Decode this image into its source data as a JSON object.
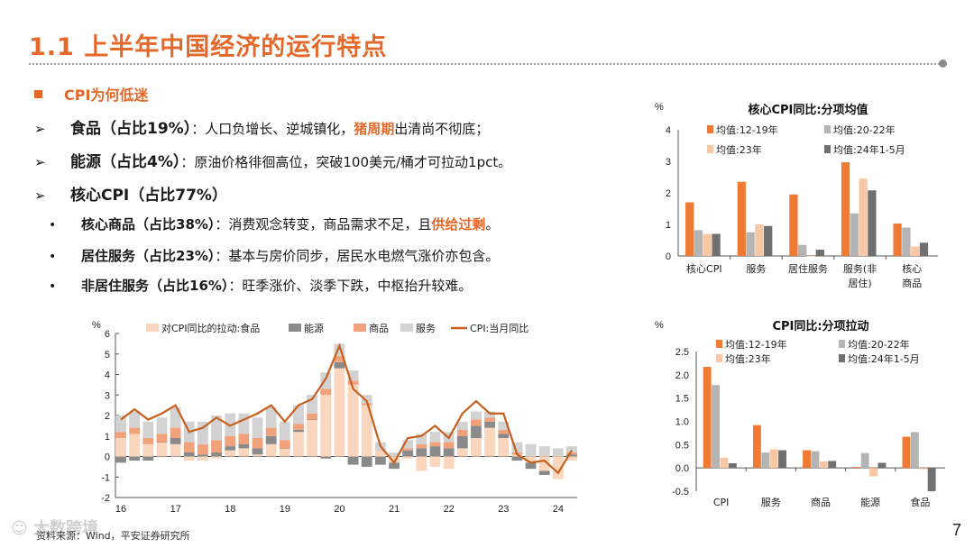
{
  "page": {
    "title": "1.1 上半年中国经济的运行特点",
    "page_number": "7",
    "source": "资料来源：Wind，平安证券研究所",
    "watermark": "大数跨境"
  },
  "bullets": {
    "section": "CPI为何低迷",
    "items": [
      {
        "head": "食品（占比19%）",
        "pre": "：人口负增长、逆城镇化，",
        "hl": "猪周期",
        "post": "出清尚不彻底；"
      },
      {
        "head": "能源（占比4%）",
        "pre": "：原油价格徘徊高位，突破100美元/桶才可拉动1pct。",
        "hl": "",
        "post": ""
      },
      {
        "head": "核心CPI（占比77%）",
        "pre": "",
        "hl": "",
        "post": ""
      }
    ],
    "subitems": [
      {
        "head": "核心商品（占比38%）",
        "pre": "：消费观念转变，商品需求不足，且",
        "hl": "供给过剩",
        "post": "。"
      },
      {
        "head": "居住服务（占比23%）",
        "pre": "：基本与房价同步，居民水电燃气涨价亦包含。",
        "hl": "",
        "post": ""
      },
      {
        "head": "非居住服务（占比16%）",
        "pre": "：旺季涨价、淡季下跌，中枢抬升较难。",
        "hl": "",
        "post": ""
      }
    ]
  },
  "colors": {
    "accent": "#e4682a",
    "s1": "#ee7a33",
    "s2": "#b4b4b4",
    "s3": "#f8c7a6",
    "s4": "#707070",
    "food": "#fbd6bf",
    "energy": "#8a8a8a",
    "goods": "#f2a27a",
    "services": "#d2d2d2",
    "line": "#c5601f"
  },
  "chart_data": [
    {
      "type": "area",
      "unit": "%",
      "ylim": [
        -2,
        6
      ],
      "yticks": [
        "-2",
        "-1",
        "0",
        "1",
        "2",
        "3",
        "4",
        "5",
        "6"
      ],
      "xticks": [
        "16",
        "17",
        "18",
        "19",
        "20",
        "21",
        "22",
        "23",
        "24"
      ],
      "legend_placement": "top",
      "x": [
        "2016-01",
        "2016-04",
        "2016-07",
        "2016-10",
        "2017-01",
        "2017-04",
        "2017-07",
        "2017-10",
        "2018-01",
        "2018-04",
        "2018-07",
        "2018-10",
        "2019-01",
        "2019-04",
        "2019-07",
        "2019-10",
        "2020-01",
        "2020-04",
        "2020-07",
        "2020-10",
        "2021-01",
        "2021-04",
        "2021-07",
        "2021-10",
        "2022-01",
        "2022-04",
        "2022-07",
        "2022-10",
        "2023-01",
        "2023-04",
        "2023-07",
        "2023-10",
        "2024-01",
        "2024-04"
      ],
      "series": [
        {
          "name": "对CPI同比的拉动:食品",
          "values": [
            0.9,
            1.1,
            0.6,
            0.7,
            0.6,
            -0.2,
            -0.2,
            -0.1,
            0.3,
            0.4,
            0.1,
            0.6,
            0.4,
            1.2,
            1.8,
            3.0,
            4.3,
            3.5,
            2.5,
            0.3,
            -0.3,
            -0.1,
            -0.7,
            -0.5,
            -0.6,
            0.4,
            0.9,
            1.4,
            0.9,
            0.1,
            -0.3,
            -0.7,
            -1.1,
            -0.2
          ]
        },
        {
          "name": "能源",
          "values": [
            -0.3,
            -0.2,
            -0.2,
            0.0,
            0.3,
            0.2,
            0.1,
            0.2,
            0.2,
            0.2,
            0.3,
            0.4,
            0.0,
            0.1,
            0.0,
            -0.1,
            0.3,
            -0.4,
            -0.5,
            -0.4,
            -0.3,
            0.3,
            0.4,
            0.5,
            0.4,
            0.6,
            0.6,
            0.3,
            0.2,
            -0.2,
            -0.3,
            -0.2,
            0.0,
            0.1
          ]
        },
        {
          "name": "商品",
          "values": [
            0.3,
            0.3,
            0.3,
            0.4,
            0.5,
            0.5,
            0.5,
            0.6,
            0.5,
            0.5,
            0.5,
            0.4,
            0.4,
            0.3,
            0.3,
            0.3,
            0.3,
            0.2,
            0.1,
            0.0,
            0.0,
            0.1,
            0.2,
            0.2,
            0.3,
            0.3,
            0.3,
            0.2,
            0.2,
            0.1,
            0.0,
            0.0,
            0.0,
            0.1
          ]
        },
        {
          "name": "服务",
          "values": [
            0.8,
            0.8,
            0.8,
            0.8,
            1.0,
            1.0,
            1.1,
            1.2,
            1.1,
            1.0,
            1.0,
            1.0,
            0.9,
            0.9,
            0.9,
            0.8,
            0.6,
            0.5,
            0.4,
            0.4,
            0.2,
            0.4,
            0.5,
            0.5,
            0.5,
            0.4,
            0.4,
            0.3,
            0.4,
            0.5,
            0.6,
            0.5,
            0.4,
            0.3
          ]
        },
        {
          "name": "CPI:当月同比",
          "values": [
            1.8,
            2.3,
            1.8,
            2.1,
            2.5,
            1.2,
            1.4,
            1.9,
            1.5,
            1.8,
            2.1,
            2.5,
            1.7,
            2.5,
            2.8,
            3.8,
            5.4,
            3.3,
            2.7,
            0.5,
            -0.3,
            0.9,
            1.0,
            1.5,
            0.9,
            2.1,
            2.7,
            2.1,
            2.1,
            0.1,
            -0.3,
            -0.2,
            -0.8,
            0.3
          ]
        }
      ]
    },
    {
      "type": "bar",
      "title": "核心CPI同比:分项均值",
      "unit": "%",
      "ylim": [
        0,
        4
      ],
      "yticks": [
        "0",
        "1",
        "2",
        "3",
        "4"
      ],
      "categories": [
        "核心CPI",
        "服务",
        "居住服务",
        "服务(非\n居住)",
        "核心\n商品"
      ],
      "legend_placement": "top",
      "series": [
        {
          "name": "均值:12-19年",
          "values": [
            1.7,
            2.35,
            1.95,
            2.97,
            1.03
          ]
        },
        {
          "name": "均值:20-22年",
          "values": [
            0.82,
            0.75,
            0.35,
            1.35,
            0.9
          ]
        },
        {
          "name": "均值:23年",
          "values": [
            0.7,
            1.0,
            0.0,
            2.45,
            0.3
          ]
        },
        {
          "name": "均值:24年1-5月",
          "values": [
            0.7,
            0.95,
            0.2,
            2.08,
            0.42
          ]
        }
      ]
    },
    {
      "type": "bar",
      "title": "CPI同比:分项拉动",
      "unit": "%",
      "ylim": [
        -0.5,
        2.5
      ],
      "yticks": [
        "-0.5",
        "0.0",
        "0.5",
        "1.0",
        "1.5",
        "2.0",
        "2.5"
      ],
      "categories": [
        "CPI",
        "服务",
        "商品",
        "能源",
        "食品"
      ],
      "legend_placement": "top",
      "series": [
        {
          "name": "均值:12-19年",
          "values": [
            2.17,
            0.92,
            0.38,
            0.02,
            0.67
          ]
        },
        {
          "name": "均值:20-22年",
          "values": [
            1.78,
            0.33,
            0.36,
            0.32,
            0.77
          ]
        },
        {
          "name": "均值:23年",
          "values": [
            0.22,
            0.4,
            0.14,
            -0.18,
            -0.03
          ]
        },
        {
          "name": "均值:24年1-5月",
          "values": [
            0.1,
            0.38,
            0.15,
            0.11,
            -0.5
          ]
        }
      ]
    }
  ]
}
